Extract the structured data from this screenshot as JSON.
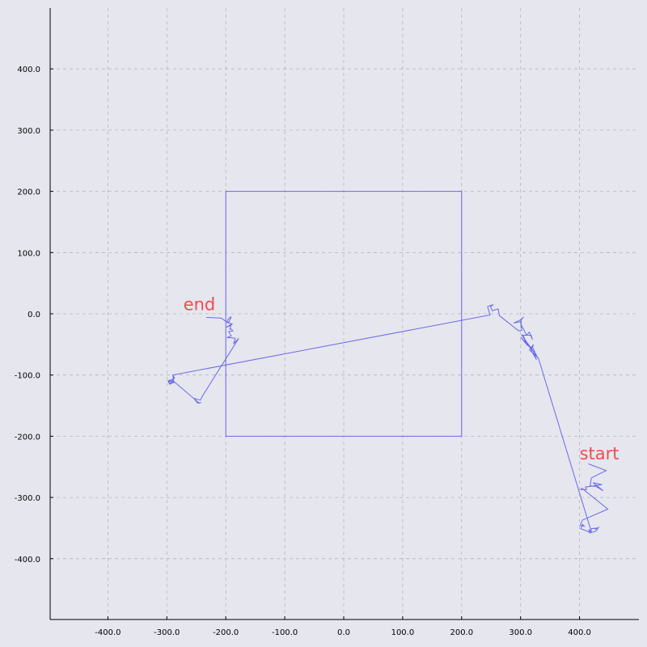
{
  "chart_data": {
    "type": "line",
    "title": "",
    "xlabel": "",
    "ylabel": "",
    "xlim": [
      -500,
      500
    ],
    "ylim": [
      -500,
      500
    ],
    "grid": true,
    "x_ticks": [
      -400,
      -300,
      -200,
      -100,
      0,
      100,
      200,
      300,
      400
    ],
    "y_ticks": [
      400,
      300,
      200,
      100,
      0,
      -100,
      -200,
      -300,
      -400
    ],
    "x_tick_labels": [
      "-400.0",
      "-300.0",
      "-200.0",
      "-100.0",
      "0.0",
      "100.0",
      "200.0",
      "300.0",
      "400.0"
    ],
    "y_tick_labels": [
      "400.0",
      "300.0",
      "200.0",
      "100.0",
      "0.0",
      "-100.0",
      "-200.0",
      "-300.0",
      "-400.0"
    ],
    "colors": {
      "background": "#e6e6ef",
      "grid": "#b5b5b5",
      "line": "#6a6ae6",
      "annotation": "#ee4d4d"
    },
    "series": [
      {
        "x": [
          -200,
          200,
          200,
          -200,
          -200
        ],
        "y": [
          200,
          200,
          -200,
          -200,
          200
        ]
      },
      {
        "x": [
          415,
          445,
          420,
          418,
          428,
          440,
          423,
          438,
          410,
          412,
          402,
          404,
          448,
          405,
          401,
          408,
          405,
          402,
          418,
          420,
          428,
          426,
          432,
          428,
          417,
          416,
          420,
          330,
          315,
          322,
          318,
          327,
          322,
          329,
          321,
          314,
          309,
          305,
          307,
          302,
          312,
          300,
          323,
          302,
          318,
          320,
          315,
          310,
          306,
          301,
          301,
          305,
          300,
          288,
          300,
          302,
          297,
          264,
          262,
          252,
          249,
          254,
          244,
          248,
          -290,
          -288,
          -295,
          -287,
          -290,
          -288,
          -298,
          -295,
          -288,
          -295,
          -298,
          -295,
          -290,
          -245,
          -242,
          -248,
          -254,
          -243,
          -240,
          -178,
          -187,
          -184,
          -192,
          -198,
          -191,
          -195,
          -188,
          -192,
          -193,
          -191,
          -199,
          -194,
          -189,
          -198,
          -196,
          -192,
          -191,
          -196,
          -208,
          -233
        ],
        "y": [
          -245,
          -256,
          -268,
          -281,
          -282,
          -289,
          -276,
          -279,
          -283,
          -287,
          -287,
          -285,
          -319,
          -337,
          -346,
          -347,
          -344,
          -351,
          -357,
          -351,
          -350,
          -352,
          -349,
          -355,
          -358,
          -353,
          -356,
          -72,
          -59,
          -50,
          -60,
          -75,
          -63,
          -72,
          -56,
          -53,
          -47,
          -36,
          -42,
          -34,
          -52,
          -38,
          -63,
          -35,
          -35,
          -42,
          -30,
          -35,
          -27,
          -18,
          -10,
          -5,
          -10,
          -15,
          -13,
          -27,
          -28,
          -3,
          8,
          5,
          12,
          15,
          12,
          -2,
          -100,
          -105,
          -110,
          -105,
          -100,
          -112,
          -110,
          -115,
          -112,
          -108,
          -110,
          -114,
          -109,
          -146,
          -145,
          -146,
          -138,
          -141,
          -135,
          -40,
          -49,
          -40,
          -39,
          -39,
          -36,
          -29,
          -28,
          -24,
          -25,
          -17,
          -22,
          -20,
          -17,
          -13,
          -9,
          -5,
          -6,
          -15,
          -7,
          -6
        ]
      }
    ],
    "annotations": [
      {
        "text": "start",
        "x": 400,
        "y": -238
      },
      {
        "text": "end",
        "x": -272,
        "y": 6
      }
    ]
  }
}
